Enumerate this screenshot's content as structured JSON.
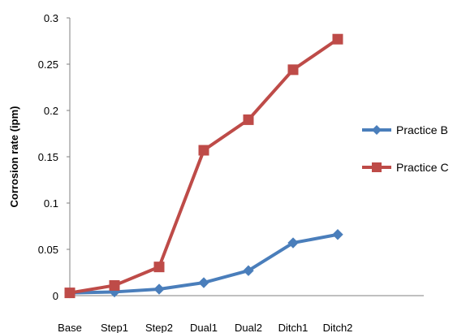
{
  "chart_data": {
    "type": "line",
    "title": "",
    "xlabel": "",
    "ylabel": "Corrosion rate (ipm)",
    "categories": [
      "Base",
      "Step1",
      "Step2",
      "Dual1",
      "Dual2",
      "Ditch1",
      "Ditch2"
    ],
    "ylim": [
      0,
      0.3
    ],
    "yticks": [
      "0",
      "0.05",
      "0.1",
      "0.15",
      "0.2",
      "0.25",
      "0.3"
    ],
    "grid": false,
    "legend_position": "right",
    "series": [
      {
        "name": "Practice B",
        "color": "#4a7ebb",
        "marker": "diamond",
        "values": [
          0.003,
          0.004,
          0.007,
          0.014,
          0.027,
          0.057,
          0.066
        ]
      },
      {
        "name": "Practice C",
        "color": "#be4b48",
        "marker": "square",
        "values": [
          0.003,
          0.011,
          0.031,
          0.157,
          0.19,
          0.244,
          0.277
        ]
      }
    ]
  }
}
